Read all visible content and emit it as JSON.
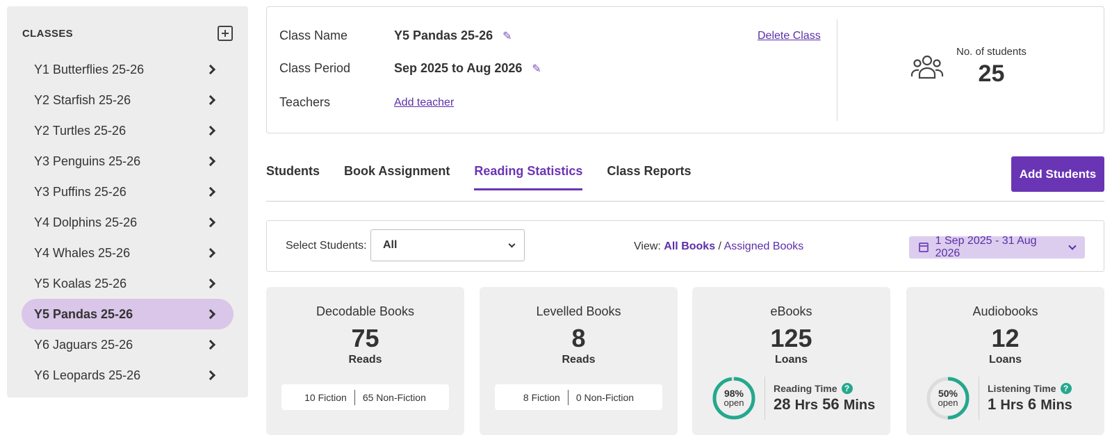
{
  "sidebar": {
    "title": "CLASSES",
    "add_icon": "plus-square-icon",
    "items": [
      {
        "label": "Y1 Butterflies 25-26",
        "active": false
      },
      {
        "label": "Y2 Starfish 25-26",
        "active": false
      },
      {
        "label": "Y2 Turtles 25-26",
        "active": false
      },
      {
        "label": "Y3 Penguins 25-26",
        "active": false
      },
      {
        "label": "Y3 Puffins 25-26",
        "active": false
      },
      {
        "label": "Y4 Dolphins 25-26",
        "active": false
      },
      {
        "label": "Y4 Whales 25-26",
        "active": false
      },
      {
        "label": "Y5 Koalas 25-26",
        "active": false
      },
      {
        "label": "Y5 Pandas 25-26",
        "active": true
      },
      {
        "label": "Y6 Jaguars 25-26",
        "active": false
      },
      {
        "label": "Y6 Leopards 25-26",
        "active": false
      }
    ]
  },
  "class_info": {
    "name_label": "Class Name",
    "name_value": "Y5 Pandas 25-26",
    "period_label": "Class Period",
    "period_value": "Sep 2025 to Aug 2026",
    "teachers_label": "Teachers",
    "add_teacher": "Add teacher",
    "delete_class": "Delete Class",
    "students_label": "No. of students",
    "students_count": "25"
  },
  "tabs": [
    {
      "label": "Students",
      "active": false
    },
    {
      "label": "Book Assignment",
      "active": false
    },
    {
      "label": "Reading Statistics",
      "active": true
    },
    {
      "label": "Class Reports",
      "active": false
    }
  ],
  "add_students": "Add Students",
  "filter": {
    "select_label": "Select Students:",
    "select_value": "All",
    "view_label": "View:",
    "view_all": "All Books",
    "view_sep": "/",
    "view_assigned": "Assigned Books",
    "date_range": "1 Sep 2025 - 31 Aug 2026"
  },
  "cards": {
    "decodable": {
      "title": "Decodable Books",
      "value": "75",
      "unit": "Reads",
      "fiction": "10 Fiction",
      "nonfiction": "65 Non-Fiction"
    },
    "levelled": {
      "title": "Levelled Books",
      "value": "8",
      "unit": "Reads",
      "fiction": "8 Fiction",
      "nonfiction": "0 Non-Fiction"
    },
    "ebooks": {
      "title": "eBooks",
      "value": "125",
      "unit": "Loans",
      "open_pct": "98%",
      "open_fraction": 0.98,
      "open_label": "open",
      "time_label": "Reading Time",
      "hrs": "28",
      "hrs_unit": "Hrs",
      "mins": "56",
      "mins_unit": "Mins"
    },
    "audiobooks": {
      "title": "Audiobooks",
      "value": "12",
      "unit": "Loans",
      "open_pct": "50%",
      "open_fraction": 0.5,
      "open_label": "open",
      "time_label": "Listening Time",
      "hrs": "1",
      "hrs_unit": "Hrs",
      "mins": "6",
      "mins_unit": "Mins"
    }
  },
  "colors": {
    "accent": "#6a35b4",
    "active_bg": "#d9c6e8",
    "donut": "#24a88d",
    "donut_track": "#dcdcdc"
  }
}
